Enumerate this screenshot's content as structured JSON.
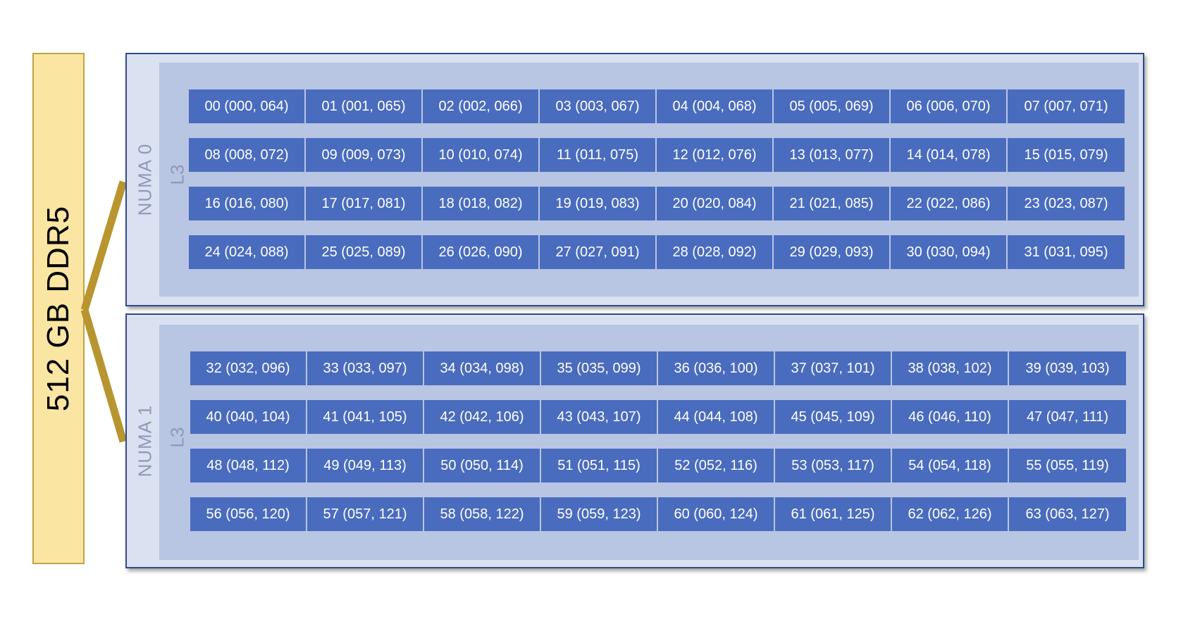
{
  "memory": {
    "label": "512 GB DDR5"
  },
  "colors": {
    "memory_fill": "#fae5a2",
    "memory_border": "#c2a244",
    "connector": "#b8952f",
    "numa_fill": "#dae1f1",
    "numa_border": "#2f4a8c",
    "l3_fill": "#b8c5e3",
    "core_fill": "#4a6cbe",
    "label_gray": "#8e9bb8"
  },
  "numa_nodes": [
    {
      "label": "NUMA 0",
      "cache_label": "L3",
      "cores": [
        "00 (000, 064)",
        "01 (001, 065)",
        "02 (002, 066)",
        "03 (003, 067)",
        "04 (004, 068)",
        "05 (005, 069)",
        "06 (006, 070)",
        "07 (007, 071)",
        "08 (008, 072)",
        "09 (009, 073)",
        "10 (010, 074)",
        "11 (011, 075)",
        "12 (012, 076)",
        "13 (013, 077)",
        "14 (014, 078)",
        "15 (015, 079)",
        "16 (016, 080)",
        "17 (017, 081)",
        "18 (018, 082)",
        "19 (019, 083)",
        "20 (020, 084)",
        "21 (021, 085)",
        "22 (022, 086)",
        "23 (023, 087)",
        "24 (024, 088)",
        "25 (025, 089)",
        "26 (026, 090)",
        "27 (027, 091)",
        "28 (028, 092)",
        "29 (029, 093)",
        "30 (030, 094)",
        "31 (031, 095)"
      ]
    },
    {
      "label": "NUMA 1",
      "cache_label": "L3",
      "cores": [
        "32 (032, 096)",
        "33 (033, 097)",
        "34 (034, 098)",
        "35 (035, 099)",
        "36 (036, 100)",
        "37 (037, 101)",
        "38 (038, 102)",
        "39 (039, 103)",
        "40 (040, 104)",
        "41 (041, 105)",
        "42 (042, 106)",
        "43 (043, 107)",
        "44 (044, 108)",
        "45 (045, 109)",
        "46 (046, 110)",
        "47 (047, 111)",
        "48 (048, 112)",
        "49 (049, 113)",
        "50 (050, 114)",
        "51 (051, 115)",
        "52 (052, 116)",
        "53 (053, 117)",
        "54 (054, 118)",
        "55 (055, 119)",
        "56 (056, 120)",
        "57 (057, 121)",
        "58 (058, 122)",
        "59 (059, 123)",
        "60 (060, 124)",
        "61 (061, 125)",
        "62 (062, 126)",
        "63 (063, 127)"
      ]
    }
  ]
}
